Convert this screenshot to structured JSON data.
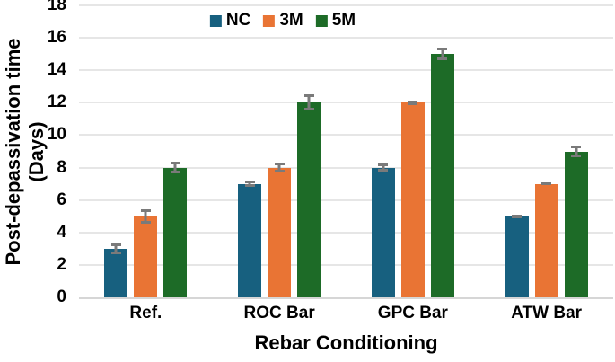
{
  "chart_data": {
    "type": "bar",
    "title": "",
    "categories": [
      "Ref.",
      "ROC Bar",
      "GPC Bar",
      "ATW Bar"
    ],
    "series": [
      {
        "name": "NC",
        "color": "#17607F",
        "values": [
          3,
          7,
          8,
          5
        ],
        "errors": [
          0.35,
          0.18,
          0.25,
          0.12
        ]
      },
      {
        "name": "3M",
        "color": "#E97434",
        "values": [
          5,
          8,
          12,
          7
        ],
        "errors": [
          0.45,
          0.3,
          0.12,
          0.1
        ]
      },
      {
        "name": "5M",
        "color": "#1D6B27",
        "values": [
          8,
          12,
          15,
          9
        ],
        "errors": [
          0.35,
          0.5,
          0.4,
          0.35
        ]
      }
    ],
    "xlabel": "Rebar Conditioning",
    "ylabel_line1": "Post-depassivation time",
    "ylabel_line2": "(Days)",
    "ylim": [
      0,
      18
    ],
    "yticks": [
      0,
      2,
      4,
      6,
      8,
      10,
      12,
      14,
      16,
      18
    ],
    "grid": true,
    "legend_position": "top-center",
    "colors": {
      "grid_line": "#E6E6E6",
      "axis_line": "#D6D6D6",
      "error_bar": "#7A7A7A",
      "text": "#000000",
      "background": "#FFFFFF"
    }
  }
}
